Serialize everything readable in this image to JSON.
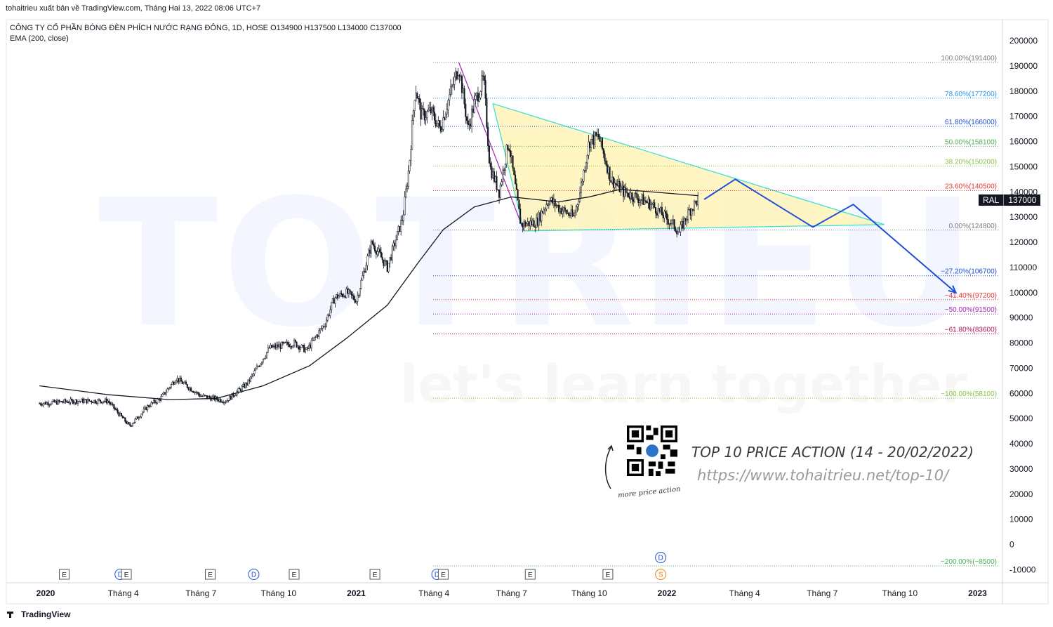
{
  "header": {
    "published_by": "tohaitrieu xuất bản về TradingView.com, Tháng Hai 13, 2022 08:06 UTC+7",
    "symbol_line": "CÔNG TY CỔ PHẦN BÓNG ĐÈN PHÍCH NƯỚC RẠNG ĐÔNG, 1D, HOSE  O134900  H137500  L134000  C137000",
    "indicator_line": "EMA (200, close)"
  },
  "price_tag": {
    "symbol": "RAL",
    "price": "137000"
  },
  "footer": {
    "brand": "TradingView"
  },
  "watermark": {
    "main": "TOTRIEU",
    "sub": "let's learn together"
  },
  "promo": {
    "title": "TOP 10 PRICE ACTION (14 - 20/02/2022)",
    "url": "https://www.tohaitrieu.net/top-10/",
    "qr_caption": "more price action"
  },
  "colors": {
    "candle": "#131722",
    "ema": "#131722",
    "triangle_fill": "#fff3b0",
    "triangle_edge": "#40e0d0",
    "projection": "#1e4fd6",
    "purple_line": "#9c27b0"
  },
  "chart_data": {
    "type": "candlestick",
    "title": "CÔNG TY CỔ PHẦN BÓNG ĐÈN PHÍCH NƯỚC RẠNG ĐÔNG, 1D, HOSE",
    "ylim": [
      -15000,
      205000
    ],
    "y_ticks": [
      -10000,
      0,
      10000,
      20000,
      30000,
      40000,
      50000,
      60000,
      70000,
      80000,
      90000,
      100000,
      110000,
      120000,
      130000,
      140000,
      150000,
      160000,
      170000,
      180000,
      190000,
      200000
    ],
    "x_labels": [
      {
        "t": 2020.0,
        "label": "2020",
        "bold": true
      },
      {
        "t": 2020.25,
        "label": "Tháng 4",
        "bold": false
      },
      {
        "t": 2020.5,
        "label": "Tháng 7",
        "bold": false
      },
      {
        "t": 2020.75,
        "label": "Tháng 10",
        "bold": false
      },
      {
        "t": 2021.0,
        "label": "2021",
        "bold": true
      },
      {
        "t": 2021.25,
        "label": "Tháng 4",
        "bold": false
      },
      {
        "t": 2021.5,
        "label": "Tháng 7",
        "bold": false
      },
      {
        "t": 2021.75,
        "label": "Tháng 10",
        "bold": false
      },
      {
        "t": 2022.0,
        "label": "2022",
        "bold": true
      },
      {
        "t": 2022.25,
        "label": "Tháng 4",
        "bold": false
      },
      {
        "t": 2022.5,
        "label": "Tháng 7",
        "bold": false
      },
      {
        "t": 2022.75,
        "label": "Tháng 10",
        "bold": false
      },
      {
        "t": 2023.0,
        "label": "2023",
        "bold": true
      }
    ],
    "price_path": [
      [
        2019.98,
        56000
      ],
      [
        2020.1,
        57000
      ],
      [
        2020.2,
        57000
      ],
      [
        2020.27,
        47000
      ],
      [
        2020.33,
        55000
      ],
      [
        2020.37,
        58000
      ],
      [
        2020.42,
        66000
      ],
      [
        2020.5,
        59000
      ],
      [
        2020.58,
        57000
      ],
      [
        2020.65,
        64000
      ],
      [
        2020.72,
        78000
      ],
      [
        2020.8,
        80000
      ],
      [
        2020.84,
        77000
      ],
      [
        2020.9,
        88000
      ],
      [
        2020.93,
        98000
      ],
      [
        2020.97,
        100000
      ],
      [
        2021.0,
        97000
      ],
      [
        2021.05,
        120000
      ],
      [
        2021.1,
        110000
      ],
      [
        2021.15,
        130000
      ],
      [
        2021.17,
        150000
      ],
      [
        2021.19,
        182000
      ],
      [
        2021.21,
        170000
      ],
      [
        2021.24,
        172000
      ],
      [
        2021.27,
        165000
      ],
      [
        2021.3,
        178000
      ],
      [
        2021.33,
        190000
      ],
      [
        2021.36,
        165000
      ],
      [
        2021.38,
        175000
      ],
      [
        2021.41,
        185000
      ],
      [
        2021.43,
        150000
      ],
      [
        2021.46,
        140000
      ],
      [
        2021.49,
        160000
      ],
      [
        2021.53,
        127000
      ],
      [
        2021.58,
        128000
      ],
      [
        2021.62,
        137000
      ],
      [
        2021.66,
        133000
      ],
      [
        2021.7,
        130000
      ],
      [
        2021.72,
        140000
      ],
      [
        2021.75,
        160000
      ],
      [
        2021.78,
        162000
      ],
      [
        2021.82,
        145000
      ],
      [
        2021.86,
        140000
      ],
      [
        2021.9,
        138000
      ],
      [
        2021.95,
        135000
      ],
      [
        2022.02,
        127000
      ],
      [
        2022.04,
        124000
      ],
      [
        2022.07,
        132000
      ],
      [
        2022.1,
        137000
      ]
    ],
    "ema200_path": [
      [
        2019.98,
        63000
      ],
      [
        2020.2,
        59500
      ],
      [
        2020.4,
        57500
      ],
      [
        2020.55,
        58000
      ],
      [
        2020.7,
        63000
      ],
      [
        2020.85,
        71000
      ],
      [
        2020.97,
        82000
      ],
      [
        2021.1,
        95000
      ],
      [
        2021.2,
        112000
      ],
      [
        2021.28,
        125000
      ],
      [
        2021.38,
        134000
      ],
      [
        2021.5,
        138000
      ],
      [
        2021.65,
        136000
      ],
      [
        2021.75,
        138000
      ],
      [
        2021.85,
        141000
      ],
      [
        2021.95,
        140000
      ],
      [
        2022.05,
        139000
      ],
      [
        2022.1,
        138500
      ]
    ],
    "fibonacci": [
      {
        "label": "100.00%(191400)",
        "value": 191400,
        "color": "#787b86"
      },
      {
        "label": "78.60%(177200)",
        "value": 177200,
        "color": "#2196f3"
      },
      {
        "label": "61.80%(166000)",
        "value": 166000,
        "color": "#1e4fd6"
      },
      {
        "label": "50.00%(158100)",
        "value": 158100,
        "color": "#4caf50"
      },
      {
        "label": "38.20%(150200)",
        "value": 150200,
        "color": "#8bc34a"
      },
      {
        "label": "23.60%(140500)",
        "value": 140500,
        "color": "#e53935"
      },
      {
        "label": "0.00%(124800)",
        "value": 124800,
        "color": "#787b86"
      },
      {
        "label": "−27.20%(106700)",
        "value": 106700,
        "color": "#1e4fd6"
      },
      {
        "label": "−41.40%(97200)",
        "value": 97200,
        "color": "#e53935"
      },
      {
        "label": "−50.00%(91500)",
        "value": 91500,
        "color": "#9c27b0"
      },
      {
        "label": "−61.80%(83600)",
        "value": 83600,
        "color": "#ad1457"
      },
      {
        "label": "−100.00%(58100)",
        "value": 58100,
        "color": "#8bc34a"
      },
      {
        "label": "−200.00%(−8500)",
        "value": -8500,
        "color": "#4caf50"
      }
    ],
    "triangle": {
      "apex_top": [
        2021.44,
        175000
      ],
      "bottom_left": [
        2021.54,
        124500
      ],
      "right_tip": [
        2022.7,
        127000
      ]
    },
    "projection": [
      [
        2022.12,
        137000
      ],
      [
        2022.22,
        145000
      ],
      [
        2022.47,
        126000
      ],
      [
        2022.6,
        135000
      ],
      [
        2022.93,
        100000
      ]
    ],
    "events": [
      {
        "t": 2020.06,
        "kind": "E"
      },
      {
        "t": 2020.24,
        "kind": "D"
      },
      {
        "t": 2020.26,
        "kind": "E"
      },
      {
        "t": 2020.53,
        "kind": "E"
      },
      {
        "t": 2020.67,
        "kind": "D"
      },
      {
        "t": 2020.8,
        "kind": "E"
      },
      {
        "t": 2021.06,
        "kind": "E"
      },
      {
        "t": 2021.26,
        "kind": "D"
      },
      {
        "t": 2021.28,
        "kind": "E"
      },
      {
        "t": 2021.56,
        "kind": "E"
      },
      {
        "t": 2021.81,
        "kind": "E"
      },
      {
        "t": 2021.98,
        "kind": "S"
      },
      {
        "t": 2021.98,
        "kind": "D",
        "upper": true
      }
    ]
  }
}
